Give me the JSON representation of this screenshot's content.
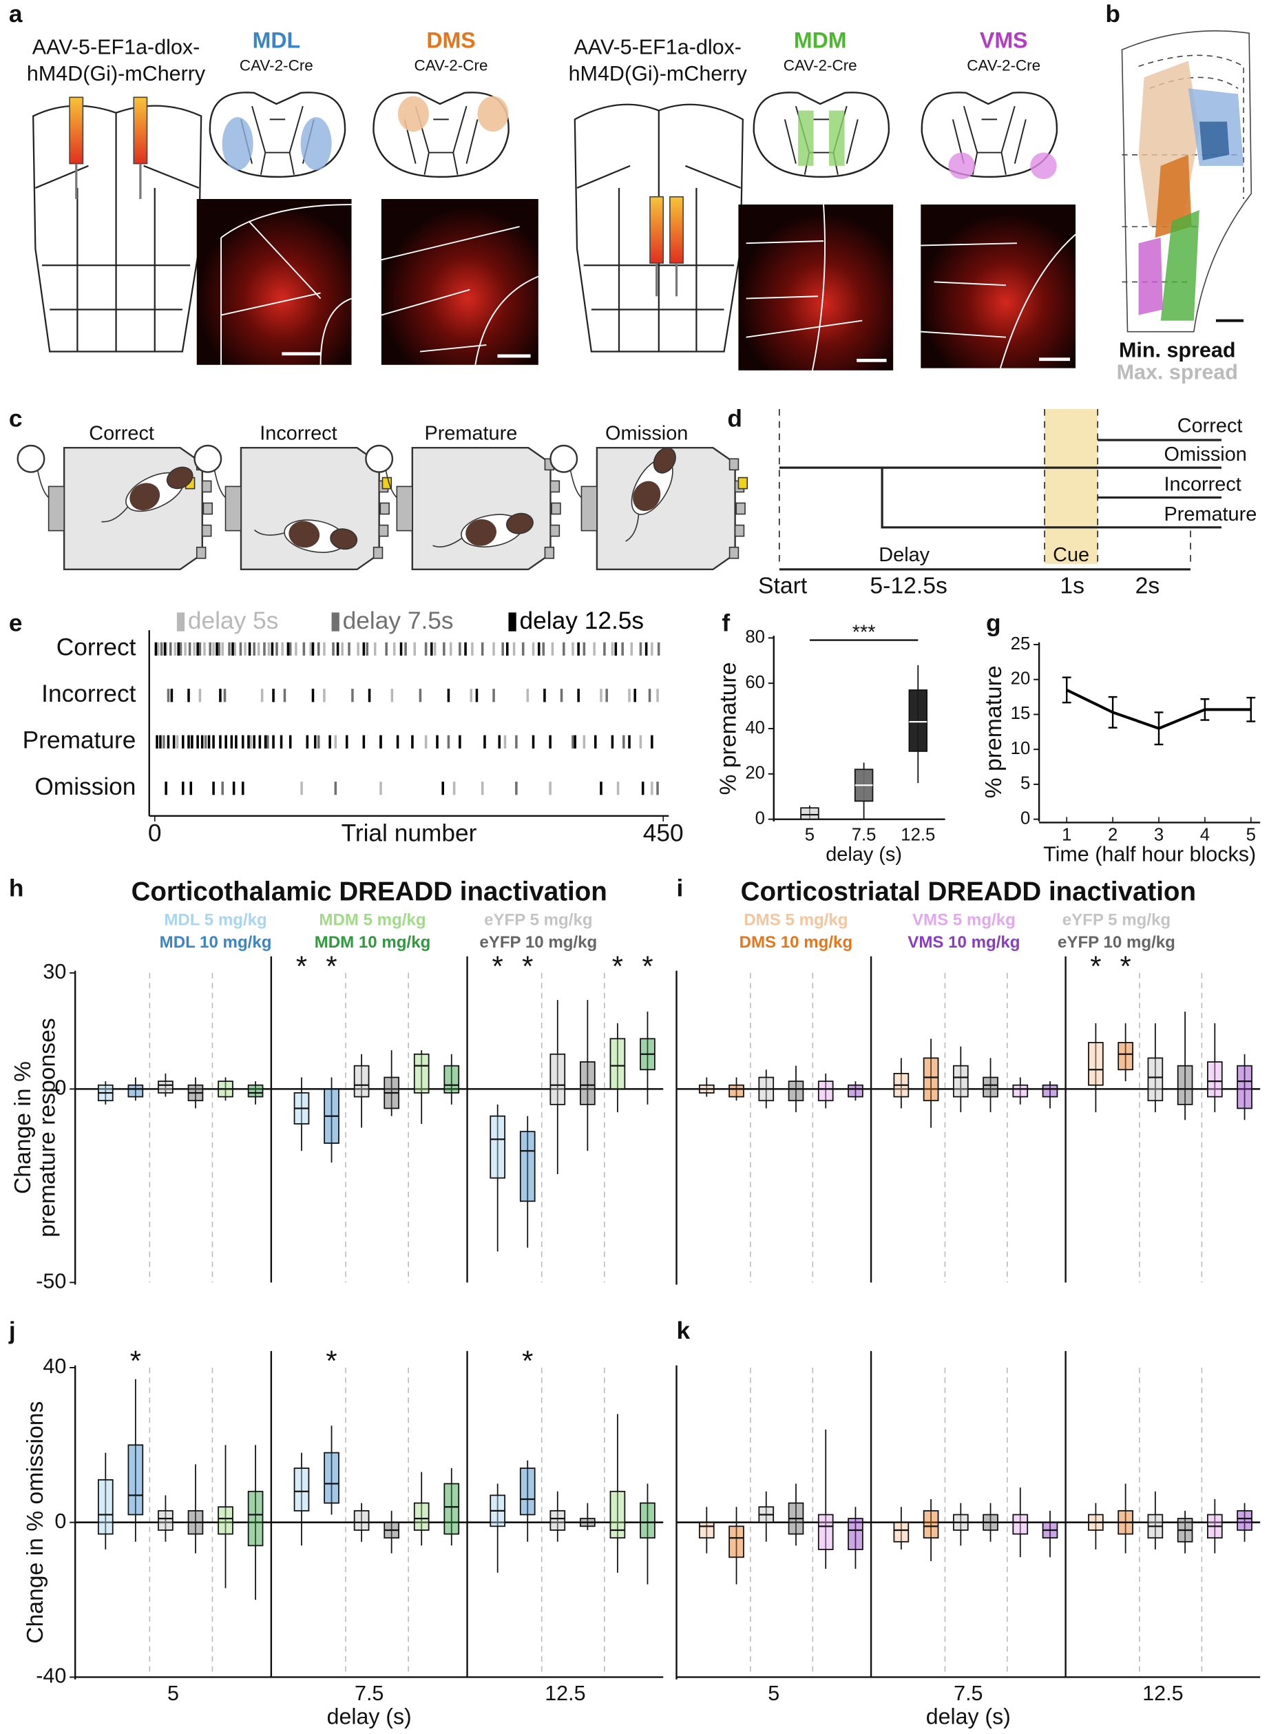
{
  "panels": [
    "a",
    "b",
    "c",
    "d",
    "e",
    "f",
    "g",
    "h",
    "i",
    "j",
    "k"
  ],
  "viral_strategy": [
    {
      "virus": [
        "AAV-5-EF1a-dlox-",
        "hM4D(Gi)-mCherry"
      ],
      "targets": [
        {
          "name": "MDL",
          "retrograde": "CAV-2-Cre"
        },
        {
          "name": "DMS",
          "retrograde": "CAV-2-Cre"
        }
      ]
    },
    {
      "virus": [
        "AAV-5-EF1a-dlox-",
        "hM4D(Gi)-mCherry"
      ],
      "targets": [
        {
          "name": "MDM",
          "retrograde": "CAV-2-Cre"
        },
        {
          "name": "VMS",
          "retrograde": "CAV-2-Cre"
        }
      ]
    }
  ],
  "spread_legend": [
    "Min. spread",
    "Max. spread"
  ],
  "task_outcomes": [
    "Correct",
    "Incorrect",
    "Premature",
    "Omission"
  ],
  "trial_timeline": {
    "outcomes": [
      "Correct",
      "Omission",
      "Incorrect",
      "Premature"
    ],
    "phases": [
      "Delay",
      "Cue"
    ],
    "time_labels": [
      "Start",
      "5-12.5s",
      "1s",
      "2s"
    ]
  },
  "chart_data": [
    {
      "type": "raster",
      "rows": [
        "Correct",
        "Incorrect",
        "Premature",
        "Omission"
      ],
      "series": [
        {
          "name": "delay 5s",
          "color": "#b8b8b8",
          "trials": [
            [
              3,
              10,
              18,
              27,
              35,
              44,
              52,
              60,
              71,
              80,
              92,
              101,
              113,
              125,
              138,
              150,
              166,
              180,
              195,
              212,
              230,
              248,
              262,
              281,
              300,
              318,
              335,
              352,
              370,
              389,
              405,
              422,
              440
            ],
            [
              40,
              95,
              150,
              210,
              280,
              330,
              395,
              420,
              445
            ],
            [
              20,
              85,
              160,
              240,
              310,
              380,
              430
            ],
            [
              130,
              200,
              265,
              290,
              350,
              410,
              440
            ]
          ]
        },
        {
          "name": "delay 7.5s",
          "color": "#707070",
          "trials": [
            [
              6,
              14,
              23,
              31,
              40,
              49,
              57,
              66,
              76,
              88,
              97,
              108,
              120,
              132,
              145,
              158,
              172,
              188,
              205,
              222,
              240,
              256,
              270,
              290,
              308,
              326,
              344,
              362,
              380,
              398,
              414,
              430,
              446
            ],
            [
              12,
              62,
              115,
              175,
              235,
              300,
              360,
              400,
              438
            ],
            [
              8,
              45,
              100,
              145,
              200,
              260,
              320,
              370,
              415
            ],
            [
              60,
              160,
              320,
              445
            ]
          ]
        },
        {
          "name": "delay 12.5s",
          "color": "#000000",
          "trials": [
            [
              1,
              9,
              21,
              38,
              55,
              69,
              84,
              104,
              118,
              140,
              162,
              185,
              218,
              245,
              275,
              312,
              340,
              375,
              408,
              435
            ],
            [
              15,
              30,
              58,
              105,
              140,
              190,
              260,
              285,
              345,
              375,
              425
            ],
            [
              2,
              5,
              12,
              17,
              25,
              30,
              33,
              38,
              42,
              48,
              52,
              58,
              63,
              68,
              72,
              78,
              83,
              88,
              93,
              98,
              105,
              112,
              120,
              135,
              142,
              155,
              170,
              185,
              200,
              215,
              228,
              250,
              270,
              292,
              305,
              335,
              350,
              372,
              390,
              405,
              420,
              440
            ],
            [
              10,
              25,
              32,
              52,
              70,
              78,
              255,
              395,
              432
            ]
          ]
        }
      ],
      "xlim": [
        0,
        450
      ],
      "xticks": [
        0,
        450
      ],
      "x_label": "Trial number"
    },
    {
      "type": "box",
      "categories": [
        "5",
        "7.5",
        "12.5"
      ],
      "median": [
        2,
        15,
        43
      ],
      "q1": [
        0,
        8,
        30
      ],
      "q3": [
        5,
        22,
        57
      ],
      "min": [
        0,
        0,
        16
      ],
      "max": [
        6,
        25,
        68
      ],
      "colors": [
        "#c8c8c8",
        "#6e6e6e",
        "#1a1a1a"
      ],
      "ylim": [
        0,
        80
      ],
      "yticks": [
        0,
        20,
        40,
        60,
        80
      ],
      "y_label": "% premature",
      "x_label": "delay (s)",
      "annotation": "***"
    },
    {
      "type": "line",
      "x": [
        1,
        2,
        3,
        4,
        5
      ],
      "values": [
        18.5,
        15.3,
        13,
        15.7,
        15.7
      ],
      "errors": [
        1.8,
        2.2,
        2.3,
        1.5,
        1.7
      ],
      "color": "#000000",
      "xlim": [
        0.4,
        5.2
      ],
      "xticks": [
        1,
        2,
        3,
        4,
        5
      ],
      "ylim": [
        0,
        25
      ],
      "yticks": [
        0,
        5,
        10,
        15,
        20,
        25
      ],
      "y_label": "% premature",
      "x_label": "Time (half hour blocks)"
    },
    {
      "type": "box",
      "title": "Corticothalamic DREADD inactivation",
      "y_label": [
        "Change in %",
        "premature responses"
      ],
      "ylim": [
        -50,
        30
      ],
      "yticks": [
        -50,
        0,
        30
      ],
      "series": [
        {
          "name": "MDL 5 mg/kg",
          "color": "#a8d5f0",
          "median": [
            -1,
            -5,
            -13
          ],
          "q1": [
            -3,
            -9,
            -23
          ],
          "q3": [
            1,
            -1,
            -7
          ],
          "min": [
            -4,
            -16,
            -42
          ],
          "max": [
            2,
            3,
            -4
          ],
          "significance": [
            null,
            "*",
            "*"
          ]
        },
        {
          "name": "MDL 10 mg/kg",
          "color": "#3a85c6",
          "median": [
            0,
            -7,
            -16
          ],
          "q1": [
            -2,
            -14,
            -29
          ],
          "q3": [
            1,
            0,
            -11
          ],
          "min": [
            -3,
            -19,
            -41
          ],
          "max": [
            3,
            3,
            -7
          ],
          "significance": [
            null,
            "*",
            "*"
          ]
        },
        {
          "name": "eYFP 5 mg/kg",
          "color": "#c4c4c4",
          "median": [
            1,
            1,
            1
          ],
          "q1": [
            -1,
            -2,
            -4
          ],
          "q3": [
            2,
            6,
            9
          ],
          "min": [
            -2,
            -10,
            -22
          ],
          "max": [
            4,
            9,
            23
          ]
        },
        {
          "name": "eYFP 10 mg/kg",
          "color": "#666666",
          "median": [
            -1,
            -1,
            1
          ],
          "q1": [
            -3,
            -5,
            -4
          ],
          "q3": [
            1,
            3,
            7
          ],
          "min": [
            -5,
            -7,
            -16
          ],
          "max": [
            3,
            10,
            23
          ]
        },
        {
          "name": "MDM 5 mg/kg",
          "color": "#9fdc86",
          "median": [
            0,
            6,
            6
          ],
          "q1": [
            -2,
            -1,
            0
          ],
          "q3": [
            2,
            9,
            13
          ],
          "min": [
            -3,
            -9,
            -6
          ],
          "max": [
            3,
            10,
            17
          ],
          "significance": [
            null,
            null,
            "*"
          ]
        },
        {
          "name": "MDM 10 mg/kg",
          "color": "#2e9a3e",
          "median": [
            -1,
            1,
            9
          ],
          "q1": [
            -2,
            -1,
            5
          ],
          "q3": [
            1,
            6,
            13
          ],
          "min": [
            -4,
            -4,
            -4
          ],
          "max": [
            2,
            9,
            20
          ],
          "significance": [
            null,
            null,
            "*"
          ]
        }
      ]
    },
    {
      "type": "box",
      "title": "Corticostriatal DREADD inactivation",
      "ylim": [
        -50,
        30
      ],
      "series": [
        {
          "name": "DMS 5 mg/kg",
          "color": "#f7c49c",
          "median": [
            0,
            1,
            5
          ],
          "q1": [
            -1,
            -2,
            1
          ],
          "q3": [
            1,
            4,
            12
          ],
          "min": [
            -2,
            -5,
            -6
          ],
          "max": [
            3,
            8,
            17
          ],
          "significance": [
            null,
            null,
            "*"
          ]
        },
        {
          "name": "DMS 10 mg/kg",
          "color": "#e5761c",
          "median": [
            0,
            3,
            9
          ],
          "q1": [
            -2,
            -3,
            5
          ],
          "q3": [
            1,
            8,
            12
          ],
          "min": [
            -3,
            -10,
            2
          ],
          "max": [
            3,
            13,
            17
          ],
          "significance": [
            null,
            null,
            "*"
          ]
        },
        {
          "name": "eYFP 5 mg/kg",
          "color": "#c4c4c4",
          "median": [
            0,
            3,
            3
          ],
          "q1": [
            -3,
            -2,
            -3
          ],
          "q3": [
            3,
            6,
            8
          ],
          "min": [
            -5,
            -6,
            -6
          ],
          "max": [
            5,
            11,
            17
          ]
        },
        {
          "name": "eYFP 10 mg/kg",
          "color": "#666666",
          "median": [
            0,
            1,
            0
          ],
          "q1": [
            -3,
            -2,
            -4
          ],
          "q3": [
            2,
            3,
            6
          ],
          "min": [
            -6,
            -6,
            -8
          ],
          "max": [
            6,
            8,
            20
          ]
        },
        {
          "name": "VMS 5 mg/kg",
          "color": "#e3a7ee",
          "median": [
            0,
            0,
            2
          ],
          "q1": [
            -3,
            -2,
            -2
          ],
          "q3": [
            2,
            1,
            7
          ],
          "min": [
            -5,
            -4,
            -6
          ],
          "max": [
            4,
            3,
            17
          ]
        },
        {
          "name": "VMS 10 mg/kg",
          "color": "#8a3cbf",
          "median": [
            0,
            0,
            2
          ],
          "q1": [
            -2,
            -2,
            -5
          ],
          "q3": [
            1,
            1,
            6
          ],
          "min": [
            -3,
            -5,
            -8
          ],
          "max": [
            2,
            2,
            9
          ]
        }
      ]
    },
    {
      "type": "box",
      "categories": [
        "5",
        "7.5",
        "12.5"
      ],
      "x_label": "delay (s)",
      "y_label": "Change in % omissions",
      "ylim": [
        -40,
        40
      ],
      "yticks": [
        -40,
        0,
        40
      ],
      "series": [
        {
          "color": "#a8d5f0",
          "median": [
            2,
            8,
            3
          ],
          "q1": [
            -3,
            3,
            -1
          ],
          "q3": [
            11,
            14,
            7
          ],
          "min": [
            -7,
            -6,
            -13
          ],
          "max": [
            18,
            18,
            10
          ]
        },
        {
          "color": "#3a85c6",
          "median": [
            7,
            10,
            6
          ],
          "q1": [
            2,
            5,
            2
          ],
          "q3": [
            20,
            18,
            14
          ],
          "min": [
            -5,
            2,
            -5
          ],
          "max": [
            37,
            25,
            16
          ],
          "significance": [
            "*",
            "*",
            "*"
          ]
        },
        {
          "color": "#c4c4c4",
          "median": [
            1,
            0,
            1
          ],
          "q1": [
            -2,
            -2,
            -2
          ],
          "q3": [
            3,
            3,
            3
          ],
          "min": [
            -5,
            -5,
            -5
          ],
          "max": [
            7,
            5,
            8
          ]
        },
        {
          "color": "#666666",
          "median": [
            0,
            -2,
            0
          ],
          "q1": [
            -3,
            -4,
            -1
          ],
          "q3": [
            3,
            0,
            1
          ],
          "min": [
            -8,
            -8,
            -2
          ],
          "max": [
            15,
            3,
            5
          ]
        },
        {
          "color": "#9fdc86",
          "median": [
            1,
            1,
            -2
          ],
          "q1": [
            -3,
            -2,
            -4
          ],
          "q3": [
            4,
            5,
            8
          ],
          "min": [
            -17,
            -6,
            -13
          ],
          "max": [
            20,
            13,
            28
          ]
        },
        {
          "color": "#2e9a3e",
          "median": [
            2,
            4,
            0
          ],
          "q1": [
            -6,
            -3,
            -4
          ],
          "q3": [
            8,
            10,
            5
          ],
          "min": [
            -20,
            -6,
            -16
          ],
          "max": [
            20,
            14,
            10
          ]
        }
      ]
    },
    {
      "type": "box",
      "categories": [
        "5",
        "7.5",
        "12.5"
      ],
      "x_label": "delay (s)",
      "ylim": [
        -40,
        40
      ],
      "series": [
        {
          "color": "#f7c49c",
          "median": [
            -1,
            -2,
            0
          ],
          "q1": [
            -4,
            -5,
            -2
          ],
          "q3": [
            0,
            0,
            2
          ],
          "min": [
            -8,
            -7,
            -7
          ],
          "max": [
            4,
            4,
            5
          ]
        },
        {
          "color": "#e5761c",
          "median": [
            -4,
            -1,
            0
          ],
          "q1": [
            -9,
            -4,
            -3
          ],
          "q3": [
            -1,
            3,
            3
          ],
          "min": [
            -16,
            -10,
            -8
          ],
          "max": [
            4,
            6,
            10
          ]
        },
        {
          "color": "#c4c4c4",
          "median": [
            2,
            0,
            -1
          ],
          "q1": [
            0,
            -2,
            -4
          ],
          "q3": [
            4,
            2,
            2
          ],
          "min": [
            -5,
            -6,
            -7
          ],
          "max": [
            8,
            5,
            8
          ]
        },
        {
          "color": "#666666",
          "median": [
            1,
            0,
            -2
          ],
          "q1": [
            -3,
            -2,
            -5
          ],
          "q3": [
            5,
            2,
            1
          ],
          "min": [
            -6,
            -5,
            -8
          ],
          "max": [
            10,
            5,
            3
          ]
        },
        {
          "color": "#e3a7ee",
          "median": [
            -1,
            0,
            -1
          ],
          "q1": [
            -7,
            -3,
            -4
          ],
          "q3": [
            2,
            2,
            2
          ],
          "min": [
            -12,
            -9,
            -8
          ],
          "max": [
            24,
            9,
            6
          ]
        },
        {
          "color": "#8a3cbf",
          "median": [
            -2,
            -2,
            1
          ],
          "q1": [
            -7,
            -4,
            -2
          ],
          "q3": [
            1,
            0,
            3
          ],
          "min": [
            -12,
            -9,
            -5
          ],
          "max": [
            4,
            3,
            5
          ]
        }
      ]
    }
  ]
}
